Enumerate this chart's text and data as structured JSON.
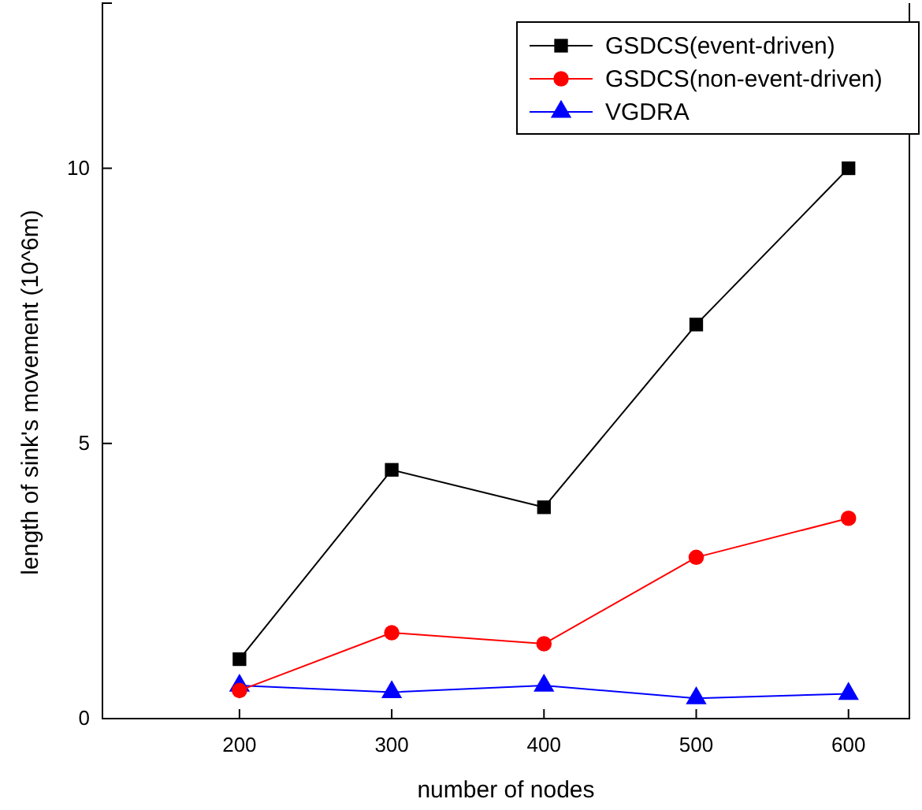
{
  "chart_data": {
    "type": "line",
    "xlabel": "number of nodes",
    "ylabel": "length of sink's movement (10^6m)",
    "x": [
      200,
      300,
      400,
      500,
      600
    ],
    "xlim": [
      110,
      640
    ],
    "xticks": [
      200,
      300,
      400,
      500,
      600
    ],
    "ylim": [
      0,
      13
    ],
    "yticks": [
      0,
      5,
      10
    ],
    "grid": false,
    "legend": "top right",
    "line_style": "solid",
    "series": [
      {
        "name": "GSDCS(event-driven)",
        "color": "#000000",
        "marker": "square",
        "values": [
          1.08,
          4.52,
          3.84,
          7.16,
          10
        ]
      },
      {
        "name": "GSDCS(non-event-driven)",
        "color": "#ff0000",
        "marker": "circle",
        "values": [
          0.51,
          1.56,
          1.36,
          2.93,
          3.64
        ]
      },
      {
        "name": "VGDRA",
        "color": "#0000ff",
        "marker": "triangle",
        "values": [
          0.6,
          0.48,
          0.6,
          0.37,
          0.45
        ]
      }
    ]
  }
}
